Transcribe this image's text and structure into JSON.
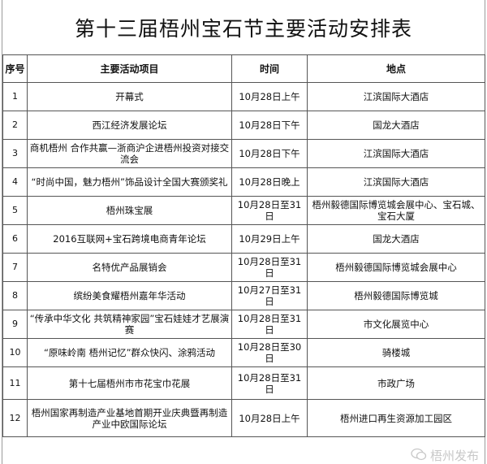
{
  "title": "第十三届梧州宝石节主要活动安排表",
  "headers": [
    "序号",
    "主要活动项目",
    "时间",
    "地点"
  ],
  "rows": [
    [
      "1",
      "开幕式",
      "10月28日上午",
      "江滨国际大酒店"
    ],
    [
      "2",
      "西江经济发展论坛",
      "10月28日下午",
      "国龙大酒店"
    ],
    [
      "3",
      "商机梧州 合作共赢—浙商沪企进梧州投资对接交流会",
      "10月28日下午",
      "江滨国际大酒店"
    ],
    [
      "4",
      "“时尚中国，魅力梧州”饰品设计全国大赛颁奖礼",
      "10月28日晚上",
      "江滨国际大酒店"
    ],
    [
      "5",
      "梧州珠宝展",
      "10月28日至31日",
      "梧州毅德国际博览城会展中心、宝石城、宝石大厦"
    ],
    [
      "6",
      "2016互联网+宝石跨境电商青年论坛",
      "10月29日上午",
      "国龙大酒店"
    ],
    [
      "7",
      "名特优产品展销会",
      "10月28日至31日",
      "梧州毅德国际博览城会展中心"
    ],
    [
      "8",
      "缤纷美食耀梧州嘉年华活动",
      "10月27日至31日",
      "梧州毅德国际博览城"
    ],
    [
      "9",
      "“传承中华文化 共筑精神家园”宝石娃娃才艺展演赛",
      "10月28日至31日",
      "市文化展览中心"
    ],
    [
      "10",
      "“原味岭南 梧州记忆”群众快闪、涂鸦活动",
      "10月28日至30日",
      "骑楼城"
    ],
    [
      "11",
      "第十七届梧州市市花宝巾花展",
      "10月28日至31日",
      "市政广场"
    ],
    [
      "12",
      "梧州国家再制造产业基地首期开业庆典暨再制造产业中欧国际论坛",
      "10月28日上午",
      "梧州进口再生资源加工园区"
    ]
  ],
  "watermark": "梧州发布",
  "watermark_icon": "wechat-icon"
}
